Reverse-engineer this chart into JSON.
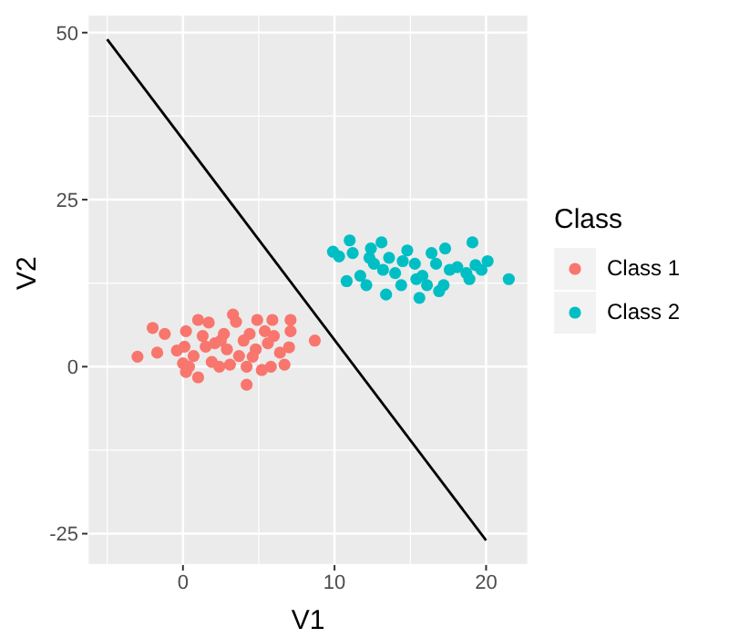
{
  "chart_data": {
    "type": "scatter",
    "xlabel": "V1",
    "ylabel": "V2",
    "legend_title": "Class",
    "xlim": [
      -6.3,
      22.8
    ],
    "ylim": [
      -29.7,
      52.7
    ],
    "xticks": [
      0,
      10,
      20
    ],
    "yticks": [
      -25,
      0,
      25,
      50
    ],
    "grid": true,
    "legend": "right",
    "marker": "circle",
    "series": [
      {
        "name": "Class 1",
        "color": "#f8766d",
        "x": [
          -3.0,
          -2.0,
          -1.7,
          -1.2,
          -0.4,
          0.2,
          0,
          0.2,
          0.4,
          1.0,
          1.0,
          0.7,
          1.7,
          1.3,
          1.9,
          2.4,
          2.1,
          2.7,
          3.3,
          3.1,
          3.5,
          2.9,
          4.0,
          4.2,
          4.2,
          4.4,
          4.9,
          4.8,
          5.2,
          5.4,
          5.8,
          5.9,
          6.0,
          6.4,
          6.7,
          7.0,
          7.1,
          7.1,
          8.7,
          1.5,
          3.7,
          4.6,
          2.5,
          5.6,
          0.1
        ],
        "values": [
          1.5,
          5.8,
          2.1,
          4.9,
          2.4,
          5.3,
          0.5,
          -0.8,
          0,
          7.0,
          -1.6,
          1.6,
          6.6,
          4.6,
          0.7,
          0,
          3.5,
          4.9,
          7.8,
          0.3,
          6.7,
          2.6,
          3.9,
          0,
          -2.7,
          4.9,
          7.0,
          2.6,
          -0.5,
          5.3,
          0,
          7.0,
          4.6,
          2.1,
          0.3,
          2.9,
          7.0,
          5.3,
          3.9,
          3.0,
          1.6,
          1.5,
          3.9,
          3.5,
          3.0
        ]
      },
      {
        "name": "Class 2",
        "color": "#00bfc4",
        "x": [
          9.9,
          10.3,
          11.0,
          11.2,
          10.8,
          11.7,
          12.1,
          12.4,
          13.1,
          12.6,
          13.4,
          13.6,
          14.0,
          14.4,
          14.8,
          15.3,
          15.6,
          15.8,
          16.1,
          16.4,
          16.9,
          17.2,
          17.3,
          17.6,
          18.1,
          18.7,
          18.9,
          19.1,
          19.3,
          19.7,
          20.1,
          21.5,
          13.2,
          14.5,
          15.4,
          16.7,
          12.3
        ],
        "values": [
          17.2,
          16.5,
          18.9,
          17.0,
          12.8,
          13.6,
          12.2,
          17.7,
          18.6,
          15.4,
          10.8,
          16.3,
          14.0,
          12.2,
          17.4,
          15.4,
          10.3,
          13.6,
          12.2,
          17.0,
          11.3,
          12.2,
          17.7,
          14.5,
          14.9,
          14.0,
          13.1,
          18.6,
          15.2,
          14.5,
          15.8,
          13.1,
          14.5,
          15.8,
          13.1,
          15.4,
          16.3
        ]
      },
      {
        "type": "line",
        "marker": "none",
        "color": "#000000",
        "x": [
          -5,
          20
        ],
        "values": [
          49,
          -26
        ]
      }
    ]
  }
}
